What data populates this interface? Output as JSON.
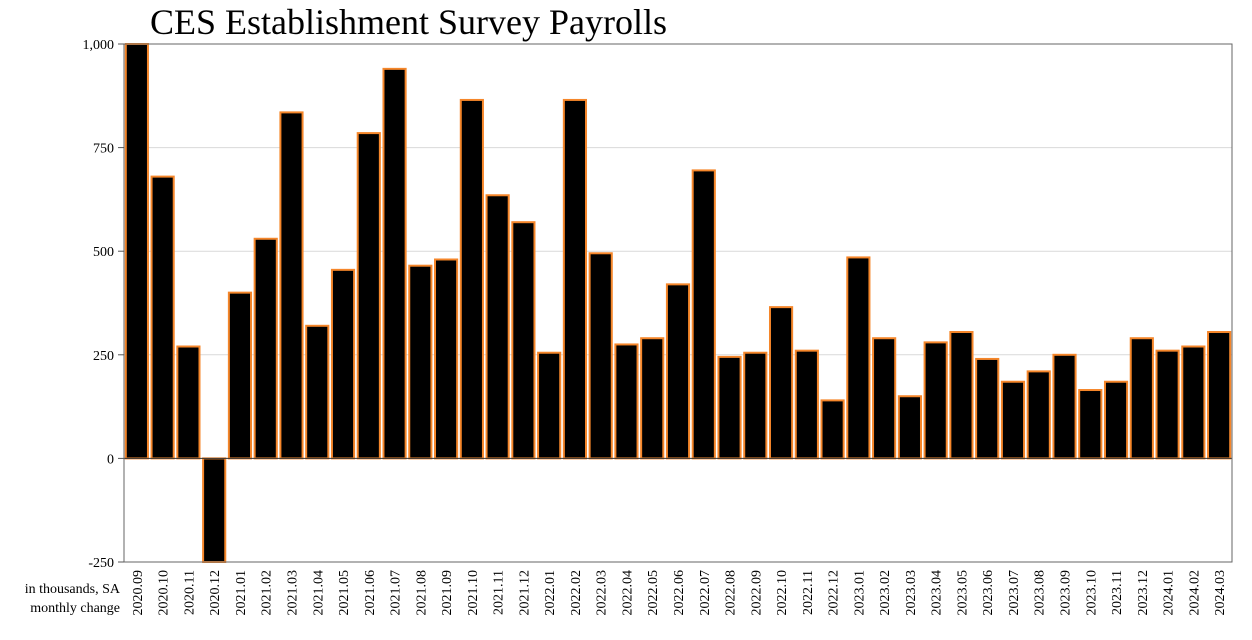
{
  "chart_data": {
    "type": "bar",
    "title": "CES Establishment Survey Payrolls",
    "ylabel_note": [
      "in thousands, SA",
      "monthly change"
    ],
    "ylim": [
      -250,
      1000
    ],
    "yticks": [
      -250,
      0,
      250,
      500,
      750,
      1000
    ],
    "ytick_labels": [
      "-250",
      "0",
      "250",
      "500",
      "750",
      "1,000"
    ],
    "grid": true,
    "bar_fill": "#000000",
    "bar_edge": "#f5862a",
    "categories": [
      "2020.09",
      "2020.10",
      "2020.11",
      "2020.12",
      "2021.01",
      "2021.02",
      "2021.03",
      "2021.04",
      "2021.05",
      "2021.06",
      "2021.07",
      "2021.08",
      "2021.09",
      "2021.10",
      "2021.11",
      "2021.12",
      "2022.01",
      "2022.02",
      "2022.03",
      "2022.04",
      "2022.05",
      "2022.06",
      "2022.07",
      "2022.08",
      "2022.09",
      "2022.10",
      "2022.11",
      "2022.12",
      "2023.01",
      "2023.02",
      "2023.03",
      "2023.04",
      "2023.05",
      "2023.06",
      "2023.07",
      "2023.08",
      "2023.09",
      "2023.10",
      "2023.11",
      "2023.12",
      "2024.01",
      "2024.02",
      "2024.03"
    ],
    "values": [
      1000,
      680,
      270,
      -250,
      400,
      530,
      835,
      320,
      455,
      785,
      940,
      465,
      480,
      865,
      635,
      570,
      255,
      865,
      495,
      275,
      290,
      420,
      695,
      245,
      255,
      365,
      260,
      140,
      485,
      290,
      150,
      280,
      305,
      240,
      185,
      210,
      250,
      165,
      185,
      290,
      260,
      270,
      305
    ]
  }
}
